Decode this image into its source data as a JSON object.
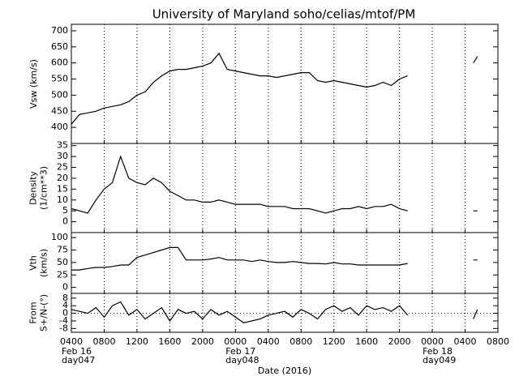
{
  "chart_data": [
    {
      "type": "line",
      "title": "University of Maryland  soho/celias/mtof/PM",
      "ylabel": [
        "Vsw (km/s)"
      ],
      "color": "#000000",
      "ylim": [
        350,
        720
      ],
      "yticks": [
        400,
        450,
        500,
        550,
        600,
        650,
        700
      ],
      "x": [
        "2016-02-16T04:00",
        "2016-02-16T05:00",
        "2016-02-16T06:00",
        "2016-02-16T07:00",
        "2016-02-16T08:00",
        "2016-02-16T09:00",
        "2016-02-16T10:00",
        "2016-02-16T11:00",
        "2016-02-16T12:00",
        "2016-02-16T13:00",
        "2016-02-16T14:00",
        "2016-02-16T15:00",
        "2016-02-16T16:00",
        "2016-02-16T17:00",
        "2016-02-16T18:00",
        "2016-02-16T19:00",
        "2016-02-16T20:00",
        "2016-02-16T21:00",
        "2016-02-16T22:00",
        "2016-02-16T23:00",
        "2016-02-17T00:00",
        "2016-02-17T01:00",
        "2016-02-17T02:00",
        "2016-02-17T03:00",
        "2016-02-17T04:00",
        "2016-02-17T05:00",
        "2016-02-17T06:00",
        "2016-02-17T07:00",
        "2016-02-17T08:00",
        "2016-02-17T09:00",
        "2016-02-17T10:00",
        "2016-02-17T11:00",
        "2016-02-17T12:00",
        "2016-02-17T13:00",
        "2016-02-17T14:00",
        "2016-02-17T15:00",
        "2016-02-17T16:00",
        "2016-02-17T17:00",
        "2016-02-17T18:00",
        "2016-02-17T19:00",
        "2016-02-17T20:00",
        "2016-02-17T21:00",
        "2016-02-17T23:00",
        "2016-02-18T05:00",
        "2016-02-18T05:30"
      ],
      "values": [
        410,
        440,
        445,
        450,
        460,
        465,
        470,
        480,
        500,
        510,
        540,
        560,
        575,
        580,
        580,
        585,
        590,
        600,
        630,
        580,
        575,
        570,
        565,
        560,
        560,
        555,
        560,
        565,
        570,
        570,
        545,
        540,
        545,
        540,
        535,
        530,
        525,
        530,
        540,
        530,
        550,
        560,
        null,
        600,
        620
      ]
    },
    {
      "type": "line",
      "ylabel": [
        "Density",
        "(1/cm**3)"
      ],
      "color": "#000000",
      "ylim": [
        -5,
        36
      ],
      "yticks": [
        0,
        5,
        10,
        15,
        20,
        25,
        30,
        35
      ],
      "x": [
        "2016-02-16T04:00",
        "2016-02-16T05:00",
        "2016-02-16T06:00",
        "2016-02-16T07:00",
        "2016-02-16T08:00",
        "2016-02-16T09:00",
        "2016-02-16T10:00",
        "2016-02-16T11:00",
        "2016-02-16T12:00",
        "2016-02-16T13:00",
        "2016-02-16T14:00",
        "2016-02-16T15:00",
        "2016-02-16T16:00",
        "2016-02-16T17:00",
        "2016-02-16T18:00",
        "2016-02-16T19:00",
        "2016-02-16T20:00",
        "2016-02-16T21:00",
        "2016-02-16T22:00",
        "2016-02-16T23:00",
        "2016-02-17T00:00",
        "2016-02-17T01:00",
        "2016-02-17T02:00",
        "2016-02-17T03:00",
        "2016-02-17T04:00",
        "2016-02-17T05:00",
        "2016-02-17T06:00",
        "2016-02-17T07:00",
        "2016-02-17T08:00",
        "2016-02-17T09:00",
        "2016-02-17T10:00",
        "2016-02-17T11:00",
        "2016-02-17T12:00",
        "2016-02-17T13:00",
        "2016-02-17T14:00",
        "2016-02-17T15:00",
        "2016-02-17T16:00",
        "2016-02-17T17:00",
        "2016-02-17T18:00",
        "2016-02-17T19:00",
        "2016-02-17T20:00",
        "2016-02-17T21:00",
        "2016-02-17T23:00",
        "2016-02-18T05:00",
        "2016-02-18T05:30"
      ],
      "values": [
        6,
        5,
        4,
        10,
        15,
        18,
        30,
        20,
        18,
        17,
        20,
        18,
        14,
        12,
        10,
        10,
        9,
        9,
        10,
        9,
        8,
        8,
        8,
        8,
        7,
        7,
        7,
        6,
        6,
        6,
        5,
        4,
        5,
        6,
        6,
        7,
        6,
        7,
        7,
        8,
        6,
        5,
        null,
        5,
        5
      ]
    },
    {
      "type": "line",
      "ylabel": [
        "Vth",
        "(km/s)"
      ],
      "color": "#000000",
      "ylim": [
        -12,
        110
      ],
      "yticks": [
        0,
        25,
        50,
        75,
        100
      ],
      "x": [
        "2016-02-16T04:00",
        "2016-02-16T05:00",
        "2016-02-16T06:00",
        "2016-02-16T07:00",
        "2016-02-16T08:00",
        "2016-02-16T09:00",
        "2016-02-16T10:00",
        "2016-02-16T11:00",
        "2016-02-16T12:00",
        "2016-02-16T13:00",
        "2016-02-16T14:00",
        "2016-02-16T15:00",
        "2016-02-16T16:00",
        "2016-02-16T17:00",
        "2016-02-16T18:00",
        "2016-02-16T19:00",
        "2016-02-16T20:00",
        "2016-02-16T21:00",
        "2016-02-16T22:00",
        "2016-02-16T23:00",
        "2016-02-17T00:00",
        "2016-02-17T01:00",
        "2016-02-17T02:00",
        "2016-02-17T03:00",
        "2016-02-17T04:00",
        "2016-02-17T05:00",
        "2016-02-17T06:00",
        "2016-02-17T07:00",
        "2016-02-17T08:00",
        "2016-02-17T09:00",
        "2016-02-17T10:00",
        "2016-02-17T11:00",
        "2016-02-17T12:00",
        "2016-02-17T13:00",
        "2016-02-17T14:00",
        "2016-02-17T15:00",
        "2016-02-17T16:00",
        "2016-02-17T17:00",
        "2016-02-17T18:00",
        "2016-02-17T19:00",
        "2016-02-17T20:00",
        "2016-02-17T21:00",
        "2016-02-17T23:00",
        "2016-02-18T05:00",
        "2016-02-18T05:30"
      ],
      "values": [
        35,
        35,
        38,
        40,
        40,
        42,
        45,
        45,
        60,
        65,
        70,
        75,
        80,
        80,
        55,
        55,
        55,
        57,
        60,
        55,
        55,
        55,
        52,
        55,
        52,
        50,
        50,
        52,
        50,
        48,
        48,
        47,
        50,
        47,
        47,
        45,
        45,
        45,
        45,
        45,
        45,
        48,
        null,
        55,
        55
      ]
    },
    {
      "type": "line",
      "ylabel": [
        "From",
        "S+/N-(°)"
      ],
      "color": "#000000",
      "zero_line": true,
      "ylim": [
        -10,
        10.5
      ],
      "yticks": [
        -8,
        -4,
        0,
        4,
        8
      ],
      "xlabel": "Date (2016)",
      "xlim": [
        "2016-02-16T04:00",
        "2016-02-18T08:00"
      ],
      "xticks": [
        {
          "value": "2016-02-16T04:00",
          "label": "0400"
        },
        {
          "value": "2016-02-16T08:00",
          "label": "0800"
        },
        {
          "value": "2016-02-16T12:00",
          "label": "1200"
        },
        {
          "value": "2016-02-16T16:00",
          "label": "1600"
        },
        {
          "value": "2016-02-16T20:00",
          "label": "2000"
        },
        {
          "value": "2016-02-17T00:00",
          "label": "0000"
        },
        {
          "value": "2016-02-17T04:00",
          "label": "0400"
        },
        {
          "value": "2016-02-17T08:00",
          "label": "0800"
        },
        {
          "value": "2016-02-17T12:00",
          "label": "1200"
        },
        {
          "value": "2016-02-17T16:00",
          "label": "1600"
        },
        {
          "value": "2016-02-17T20:00",
          "label": "2000"
        },
        {
          "value": "2016-02-18T00:00",
          "label": "0000"
        },
        {
          "value": "2016-02-18T04:00",
          "label": "0400"
        },
        {
          "value": "2016-02-18T08:00",
          "label": "0800"
        }
      ],
      "date_marks": [
        {
          "value": "2016-02-16T04:00",
          "date": "Feb 16",
          "day": "day047"
        },
        {
          "value": "2016-02-17T00:00",
          "date": "Feb 17",
          "day": "day048"
        },
        {
          "value": "2016-02-18T00:00",
          "date": "Feb 18",
          "day": "day049"
        }
      ],
      "x": [
        "2016-02-16T04:00",
        "2016-02-16T05:00",
        "2016-02-16T06:00",
        "2016-02-16T07:00",
        "2016-02-16T08:00",
        "2016-02-16T09:00",
        "2016-02-16T10:00",
        "2016-02-16T11:00",
        "2016-02-16T12:00",
        "2016-02-16T13:00",
        "2016-02-16T14:00",
        "2016-02-16T15:00",
        "2016-02-16T16:00",
        "2016-02-16T17:00",
        "2016-02-16T18:00",
        "2016-02-16T19:00",
        "2016-02-16T20:00",
        "2016-02-16T21:00",
        "2016-02-16T22:00",
        "2016-02-16T23:00",
        "2016-02-17T00:00",
        "2016-02-17T01:00",
        "2016-02-17T02:00",
        "2016-02-17T03:00",
        "2016-02-17T04:00",
        "2016-02-17T05:00",
        "2016-02-17T06:00",
        "2016-02-17T07:00",
        "2016-02-17T08:00",
        "2016-02-17T09:00",
        "2016-02-17T10:00",
        "2016-02-17T11:00",
        "2016-02-17T12:00",
        "2016-02-17T13:00",
        "2016-02-17T14:00",
        "2016-02-17T15:00",
        "2016-02-17T16:00",
        "2016-02-17T17:00",
        "2016-02-17T18:00",
        "2016-02-17T19:00",
        "2016-02-17T20:00",
        "2016-02-17T21:00",
        "2016-02-17T23:00",
        "2016-02-18T05:00",
        "2016-02-18T05:30"
      ],
      "values": [
        2,
        1,
        0,
        3,
        -2,
        4,
        6,
        -1,
        2,
        -3,
        0,
        3,
        -4,
        2,
        0,
        1,
        -3,
        2,
        -1,
        1,
        -2,
        -5,
        -4,
        -3,
        -1,
        0,
        1,
        -2,
        2,
        0,
        -3,
        2,
        4,
        1,
        3,
        -1,
        4,
        2,
        3,
        1,
        4,
        -1,
        null,
        -3,
        2
      ]
    }
  ]
}
